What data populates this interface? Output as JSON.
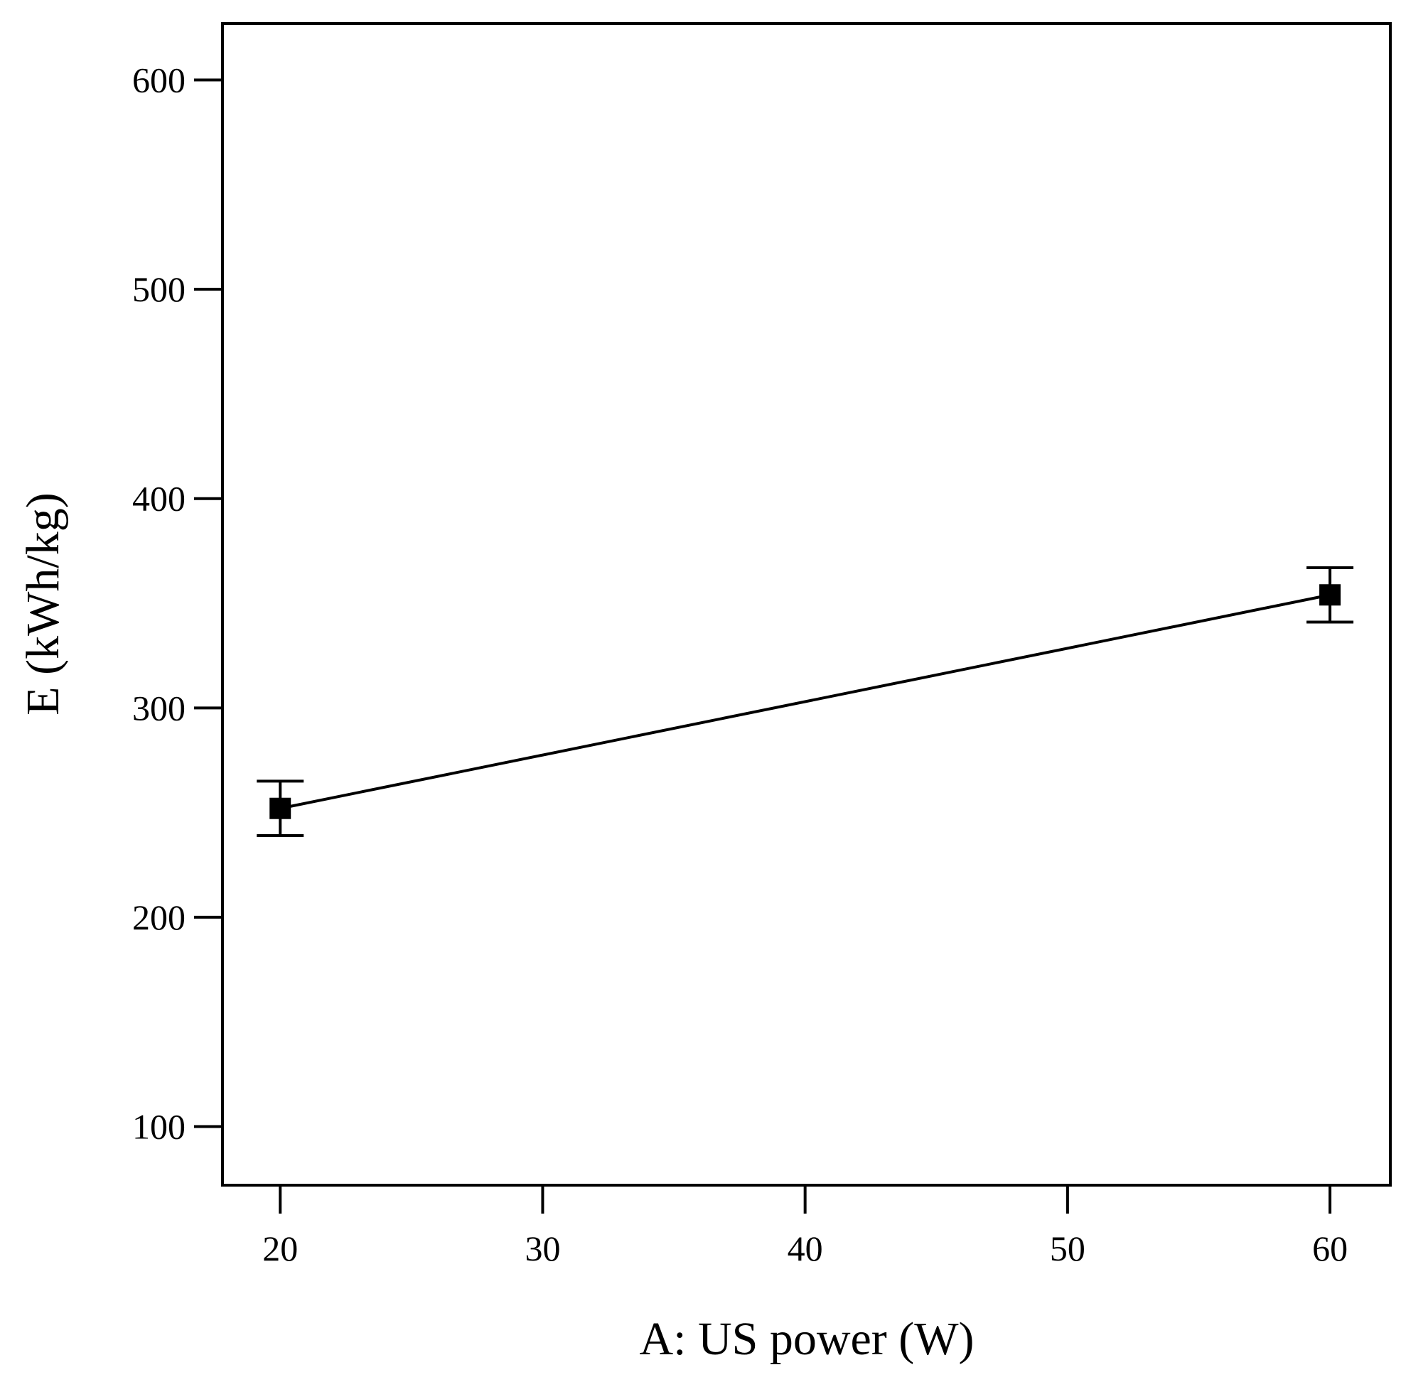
{
  "chart_data": {
    "type": "line",
    "title": "",
    "xlabel": "A: US power (W)",
    "ylabel": "E (kWh/kg)",
    "xlim": [
      17.8,
      62.3
    ],
    "ylim": [
      72,
      627
    ],
    "x_ticks": [
      20,
      30,
      40,
      50,
      60
    ],
    "y_ticks": [
      100,
      200,
      300,
      400,
      500,
      600
    ],
    "grid": false,
    "legend": "none",
    "line_color": "#000000",
    "marker": "square",
    "series": [
      {
        "points": [
          {
            "x": 20,
            "y": 252,
            "err_low": 239,
            "err_high": 265
          },
          {
            "x": 60,
            "y": 354,
            "err_low": 341,
            "err_high": 367
          }
        ]
      }
    ]
  }
}
